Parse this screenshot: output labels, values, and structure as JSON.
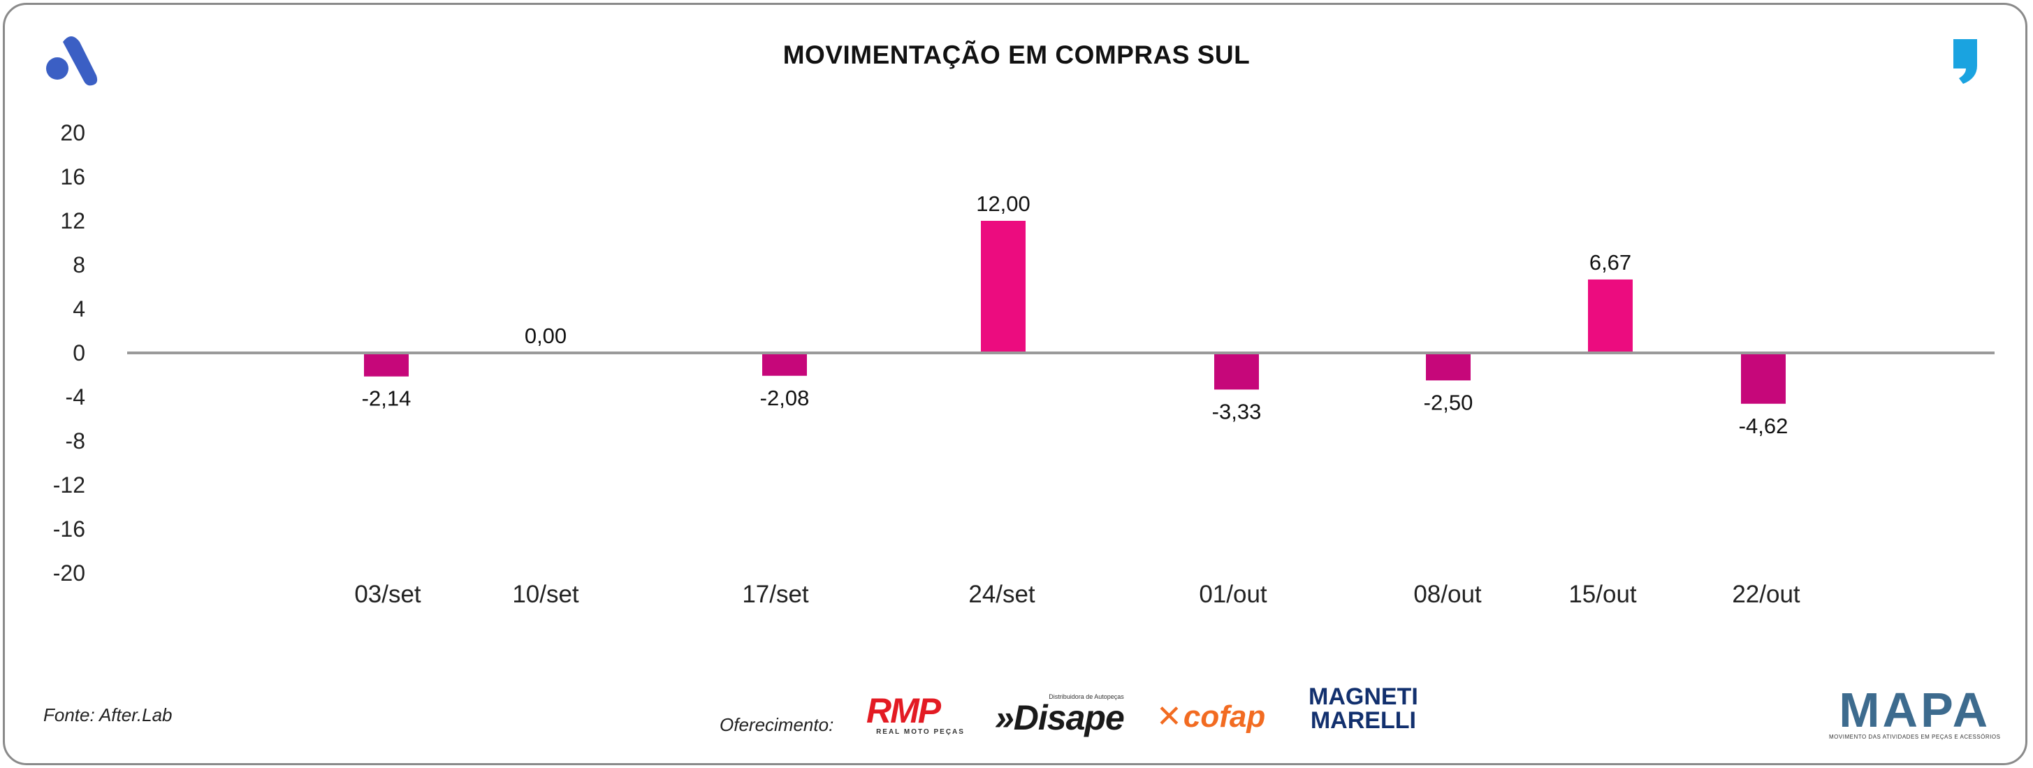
{
  "chart_data": {
    "type": "bar",
    "title": "MOVIMENTAÇÃO EM COMPRAS SUL",
    "categories": [
      "03/set",
      "10/set",
      "17/set",
      "24/set",
      "01/out",
      "08/out",
      "15/out",
      "22/out"
    ],
    "values": [
      -2.14,
      0.0,
      -2.08,
      12.0,
      -3.33,
      -2.5,
      6.67,
      -4.62
    ],
    "value_labels": [
      "-2,14",
      "0,00",
      "-2,08",
      "12,00",
      "-3,33",
      "-2,50",
      "6,67",
      "-4,62"
    ],
    "y_ticks": [
      "20",
      "16",
      "12",
      "8",
      "4",
      "0",
      "-4",
      "-8",
      "-12",
      "-16",
      "-20"
    ],
    "ylim": [
      -20,
      20
    ],
    "xlabel": "",
    "ylabel": "",
    "grid": false,
    "legend": "none",
    "colors": {
      "positive": "#ec0c7f",
      "negative": "#c6077a",
      "axis": "#9a9a9a"
    }
  },
  "footer": {
    "source": "Fonte: After.Lab",
    "sponsor_label": "Oferecimento:",
    "sponsors": {
      "rmp": "RMP",
      "rmp_sub": "REAL MOTO PEÇAS",
      "disape_sub": "Distribuidora de Autopeças",
      "disape": "»Disape",
      "cofap": "cofap",
      "magneti_1": "MAGNETI",
      "magneti_2": "MARELLI"
    },
    "mapa": "MAPA",
    "mapa_sub": "MOVIMENTO DAS ATIVIDADES EM PEÇAS E ACESSÓRIOS"
  },
  "brand": {
    "left_logo_color": "#3b5fc4",
    "right_logo_color": "#1aa3e0"
  }
}
